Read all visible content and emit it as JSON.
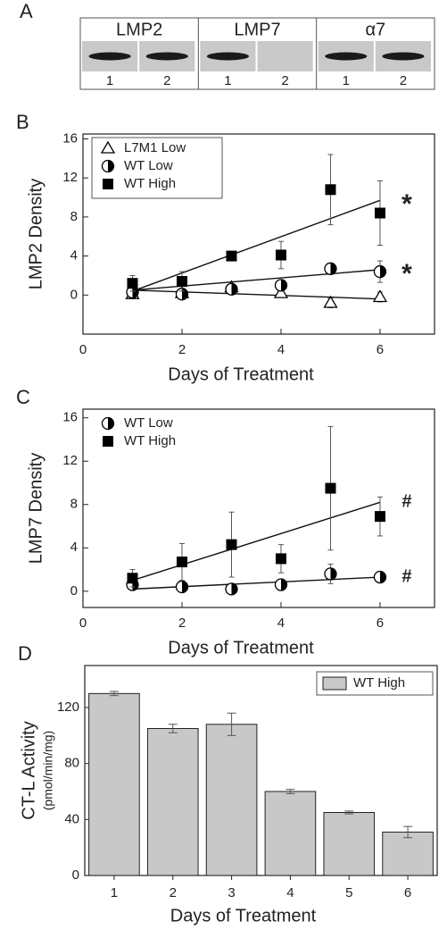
{
  "blot": {
    "panel_label": "A",
    "proteins": [
      "LMP2",
      "LMP7",
      "α7"
    ],
    "lanes": [
      "1",
      "2"
    ]
  },
  "chart_data": [
    {
      "type": "scatter",
      "panel_label": "B",
      "xlabel": "Days of Treatment",
      "ylabel": "LMP2 Density",
      "xlim": [
        0,
        7.1
      ],
      "xticks": [
        0,
        2,
        4,
        6
      ],
      "ylim": [
        -4,
        16.5
      ],
      "yticks": [
        0,
        4,
        8,
        12,
        16
      ],
      "legend": "upper left",
      "x": [
        1,
        2,
        3,
        4,
        5,
        6
      ],
      "fit_x": [
        1,
        6
      ],
      "series": [
        {
          "name": "L7M1 Low",
          "marker": "triangle",
          "color": "#000000",
          "values": [
            0.1,
            0.2,
            0.8,
            0.2,
            -0.8,
            -0.2
          ],
          "errors": [
            0.4,
            0.4,
            0.3,
            0.4,
            0.5,
            0.5
          ],
          "fit": [
            0.5,
            -0.4
          ]
        },
        {
          "name": "WT Low",
          "marker": "half-circle",
          "color": "#000000",
          "values": [
            0.3,
            0.1,
            0.6,
            1.0,
            2.7,
            2.4
          ],
          "errors": [
            0.3,
            0.4,
            0.3,
            0.3,
            0.3,
            1.1
          ],
          "fit": [
            0.5,
            2.6
          ],
          "annotation": "*"
        },
        {
          "name": "WT High",
          "marker": "square",
          "color": "#000000",
          "values": [
            1.2,
            1.4,
            4.0,
            4.1,
            10.8,
            8.4
          ],
          "errors": [
            0.8,
            1.0,
            0.2,
            1.4,
            3.6,
            3.3
          ],
          "fit": [
            0.4,
            9.7
          ],
          "annotation": "*"
        }
      ]
    },
    {
      "type": "scatter",
      "panel_label": "C",
      "xlabel": "Days of Treatment",
      "ylabel": "LMP7 Density",
      "xlim": [
        0,
        7.1
      ],
      "xticks": [
        0,
        2,
        4,
        6
      ],
      "ylim": [
        -1.5,
        16.8
      ],
      "yticks": [
        0,
        4,
        8,
        12,
        16
      ],
      "legend": "upper left",
      "x": [
        1,
        2,
        3,
        4,
        5,
        6
      ],
      "fit_x": [
        1,
        6
      ],
      "series": [
        {
          "name": "WT Low",
          "marker": "half-circle",
          "color": "#000000",
          "values": [
            0.6,
            0.4,
            0.2,
            0.6,
            1.6,
            1.3
          ],
          "errors": [
            0.3,
            0.3,
            0.3,
            0.3,
            0.9,
            0.3
          ],
          "fit": [
            0.2,
            1.3
          ],
          "annotation": "#"
        },
        {
          "name": "WT High",
          "marker": "square",
          "color": "#000000",
          "values": [
            1.2,
            2.7,
            4.3,
            3.0,
            9.5,
            6.9
          ],
          "errors": [
            0.8,
            1.7,
            3.0,
            1.3,
            5.7,
            1.8
          ],
          "fit": [
            1.0,
            8.2
          ],
          "annotation": "#"
        }
      ]
    },
    {
      "type": "bar",
      "panel_label": "D",
      "xlabel": "Days of Treatment",
      "ylabel": "CT-L Activity",
      "ylabel_units": "(pmol/min/mg)",
      "ylim": [
        0,
        150
      ],
      "yticks": [
        0,
        40,
        80,
        120
      ],
      "legend": "upper right",
      "categories": [
        "1",
        "2",
        "3",
        "4",
        "5",
        "6"
      ],
      "series": [
        {
          "name": "WT High",
          "color": "#c8c8c8",
          "values": [
            130,
            105,
            108,
            60,
            45,
            31
          ],
          "errors": [
            1.5,
            3,
            8,
            1.5,
            1,
            4
          ]
        }
      ]
    }
  ]
}
